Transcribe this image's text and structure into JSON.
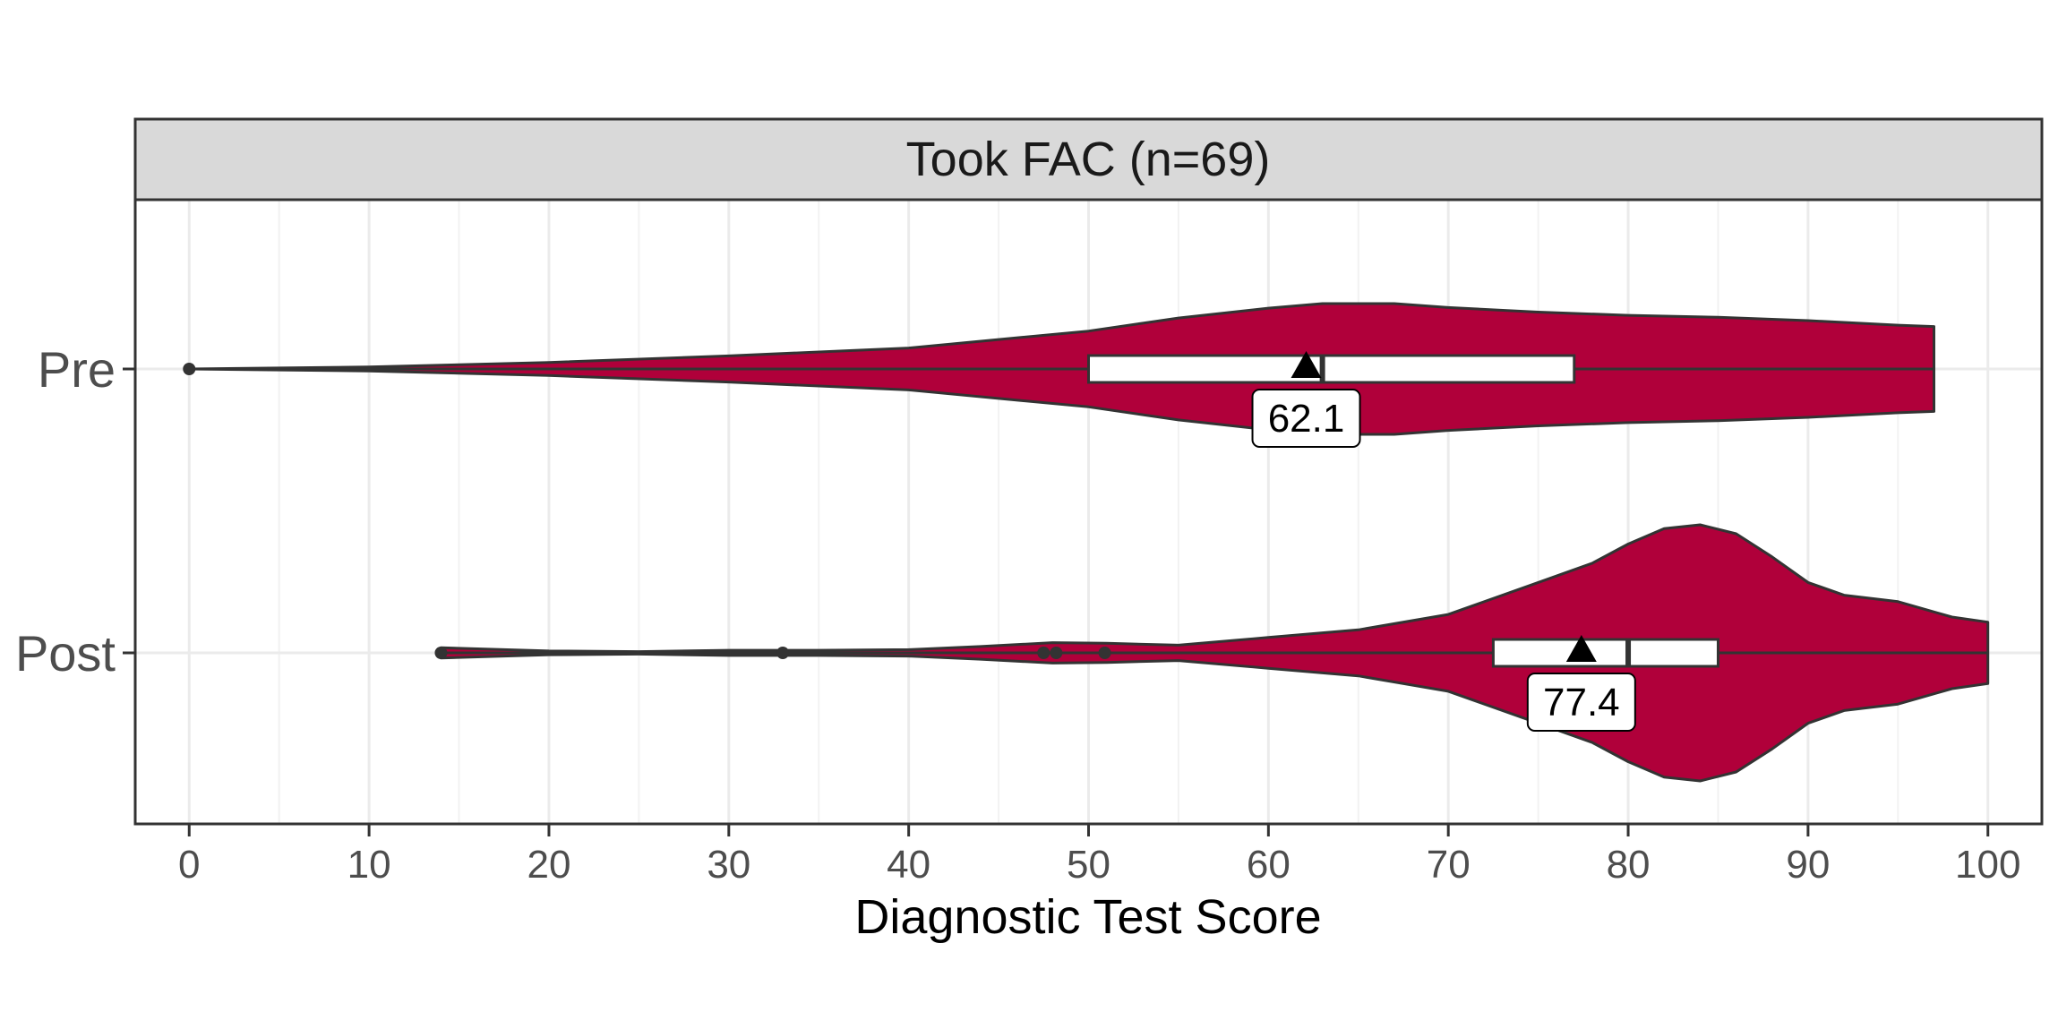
{
  "chart_data": {
    "type": "violin",
    "facet_title": "Took FAC (n=69)",
    "xlabel": "Diagnostic Test Score",
    "ylabel": "",
    "xlim": [
      -3,
      103
    ],
    "xticks": [
      0,
      10,
      20,
      30,
      40,
      50,
      60,
      70,
      80,
      90,
      100
    ],
    "xtick_labels": [
      "0",
      "10",
      "20",
      "30",
      "40",
      "50",
      "60",
      "70",
      "80",
      "90",
      "100"
    ],
    "grid": true,
    "fill_color": "#B0003A",
    "categories": [
      "Pre",
      "Post"
    ],
    "groups": [
      {
        "name": "Pre",
        "min": 0,
        "max": 97,
        "q1": 50,
        "median": 63,
        "q3": 77,
        "mean": 62.1,
        "mean_label": "62.1",
        "outliers": [
          0
        ],
        "density": [
          [
            0,
            0
          ],
          [
            10,
            0.03
          ],
          [
            20,
            0.1
          ],
          [
            30,
            0.2
          ],
          [
            40,
            0.32
          ],
          [
            50,
            0.58
          ],
          [
            55,
            0.78
          ],
          [
            60,
            0.93
          ],
          [
            63,
            1.0
          ],
          [
            67,
            1.0
          ],
          [
            70,
            0.94
          ],
          [
            75,
            0.87
          ],
          [
            80,
            0.82
          ],
          [
            85,
            0.79
          ],
          [
            90,
            0.74
          ],
          [
            95,
            0.67
          ],
          [
            97,
            0.65
          ]
        ]
      },
      {
        "name": "Post",
        "min": 14,
        "max": 100,
        "q1": 72.5,
        "median": 80,
        "q3": 85,
        "mean": 77.4,
        "mean_label": "77.4",
        "outliers": [
          14,
          33,
          47.5,
          48.2,
          50.9
        ],
        "density": [
          [
            14,
            0.04
          ],
          [
            20,
            0.015
          ],
          [
            25,
            0.01
          ],
          [
            30,
            0.02
          ],
          [
            35,
            0.02
          ],
          [
            40,
            0.025
          ],
          [
            44,
            0.05
          ],
          [
            48,
            0.08
          ],
          [
            51,
            0.075
          ],
          [
            55,
            0.06
          ],
          [
            60,
            0.12
          ],
          [
            65,
            0.18
          ],
          [
            70,
            0.3
          ],
          [
            75,
            0.55
          ],
          [
            78,
            0.7
          ],
          [
            80,
            0.85
          ],
          [
            82,
            0.97
          ],
          [
            84,
            1.0
          ],
          [
            86,
            0.93
          ],
          [
            88,
            0.75
          ],
          [
            90,
            0.55
          ],
          [
            92,
            0.45
          ],
          [
            95,
            0.4
          ],
          [
            98,
            0.28
          ],
          [
            100,
            0.24
          ]
        ]
      }
    ]
  }
}
